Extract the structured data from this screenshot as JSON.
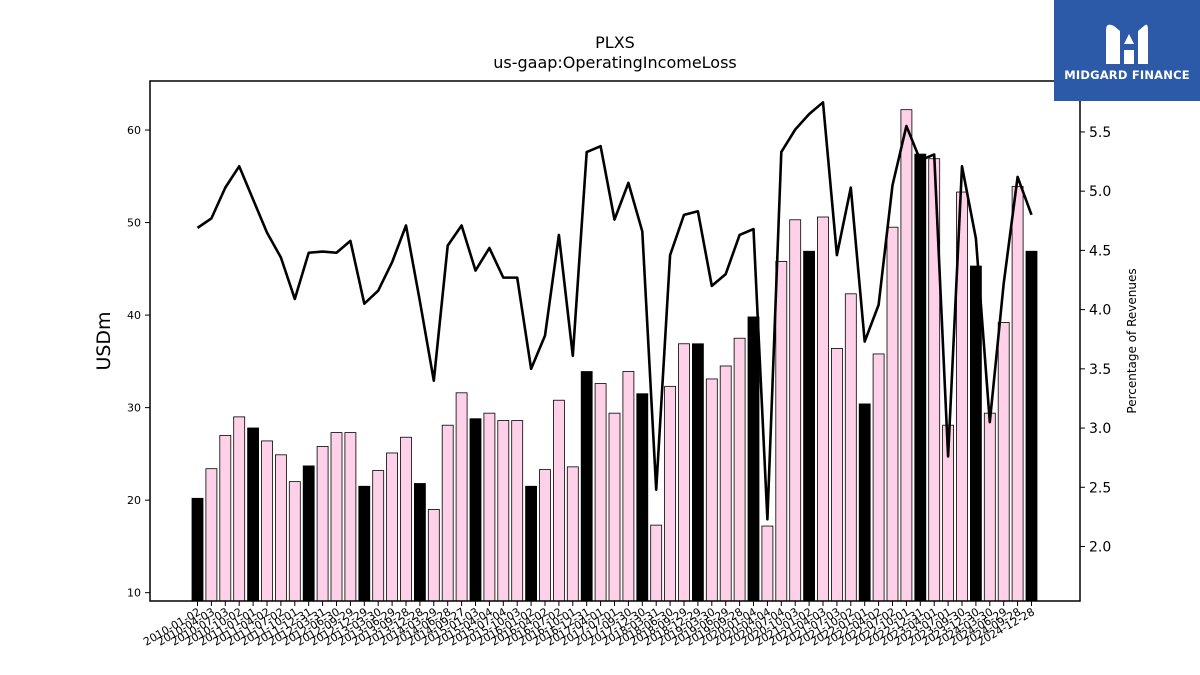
{
  "brand": {
    "name": "MIDGARD FINANCE",
    "logo_icon": "midgard-m-icon",
    "color": "#2c5aa8"
  },
  "chart_data": {
    "type": "bar",
    "title": "PLXS",
    "subtitle": "us-gaap:OperatingIncomeLoss",
    "ylabel": "USDm",
    "y2label": "Percentage of Revenues",
    "ylim": [
      9.1,
      65.3
    ],
    "y2lim": [
      1.54,
      5.93
    ],
    "yticks": [
      "10",
      "20",
      "30",
      "40",
      "50",
      "60"
    ],
    "y2ticks": [
      "2.0",
      "2.5",
      "3.0",
      "3.5",
      "4.0",
      "4.5",
      "5.0",
      "5.5"
    ],
    "categories": [
      "2010-01-02",
      "2010-04-03",
      "2010-07-03",
      "2010-10-02",
      "2011-01-01",
      "2011-04-02",
      "2011-07-02",
      "2011-10-01",
      "2011-12-31",
      "2012-03-31",
      "2012-06-30",
      "2012-09-29",
      "2012-12-29",
      "2013-03-30",
      "2013-06-29",
      "2013-09-28",
      "2013-12-28",
      "2014-03-29",
      "2014-06-28",
      "2014-09-27",
      "2015-01-03",
      "2015-04-04",
      "2015-07-04",
      "2015-10-03",
      "2016-01-02",
      "2016-04-02",
      "2016-07-02",
      "2016-10-01",
      "2016-12-31",
      "2017-04-01",
      "2017-07-01",
      "2017-09-30",
      "2017-12-30",
      "2018-03-31",
      "2018-06-30",
      "2018-09-29",
      "2018-12-29",
      "2019-03-30",
      "2019-06-29",
      "2019-09-28",
      "2020-01-04",
      "2020-04-04",
      "2020-07-04",
      "2020-10-03",
      "2021-01-02",
      "2021-04-03",
      "2021-07-03",
      "2021-10-02",
      "2022-01-01",
      "2022-04-02",
      "2022-07-02",
      "2022-10-01",
      "2022-12-31",
      "2023-04-01",
      "2023-07-01",
      "2023-09-30",
      "2023-12-30",
      "2024-03-30",
      "2024-06-29",
      "2024-09-28",
      "2024-12-28"
    ],
    "highlight_every": 4,
    "series": [
      {
        "type": "bar",
        "axis": "left",
        "values": [
          20.2,
          23.4,
          27.0,
          29.0,
          27.8,
          26.4,
          24.9,
          22.0,
          23.7,
          25.8,
          27.3,
          27.3,
          21.5,
          23.2,
          25.1,
          26.8,
          21.8,
          19.0,
          28.1,
          31.6,
          28.8,
          29.4,
          28.6,
          28.6,
          21.5,
          23.3,
          30.8,
          23.6,
          33.9,
          32.6,
          29.4,
          33.9,
          31.5,
          17.3,
          32.3,
          36.9,
          36.9,
          33.1,
          34.5,
          37.5,
          39.8,
          17.2,
          45.8,
          50.3,
          46.9,
          50.6,
          36.4,
          42.3,
          30.4,
          35.8,
          49.5,
          62.2,
          57.4,
          56.9,
          28.1,
          53.3,
          45.3,
          29.4,
          39.2,
          53.9,
          46.9
        ]
      },
      {
        "type": "line",
        "axis": "right",
        "values": [
          4.69,
          4.77,
          5.03,
          5.21,
          4.93,
          4.65,
          4.44,
          4.09,
          4.48,
          4.49,
          4.48,
          4.58,
          4.05,
          4.16,
          4.4,
          4.71,
          4.07,
          3.4,
          4.54,
          4.71,
          4.33,
          4.52,
          4.27,
          4.27,
          3.5,
          3.78,
          4.63,
          3.61,
          5.33,
          5.38,
          4.76,
          5.07,
          4.66,
          2.48,
          4.46,
          4.8,
          4.83,
          4.2,
          4.3,
          4.63,
          4.68,
          2.23,
          5.33,
          5.52,
          5.65,
          5.75,
          4.46,
          5.03,
          3.73,
          4.04,
          5.05,
          5.55,
          5.26,
          5.31,
          2.76,
          5.21,
          4.6,
          3.05,
          4.22,
          5.12,
          4.8
        ]
      }
    ],
    "colors": {
      "bar_regular": "#ffd1e8",
      "bar_highlight": "#000000",
      "bar_edge": "#000000",
      "line": "#000000"
    }
  }
}
